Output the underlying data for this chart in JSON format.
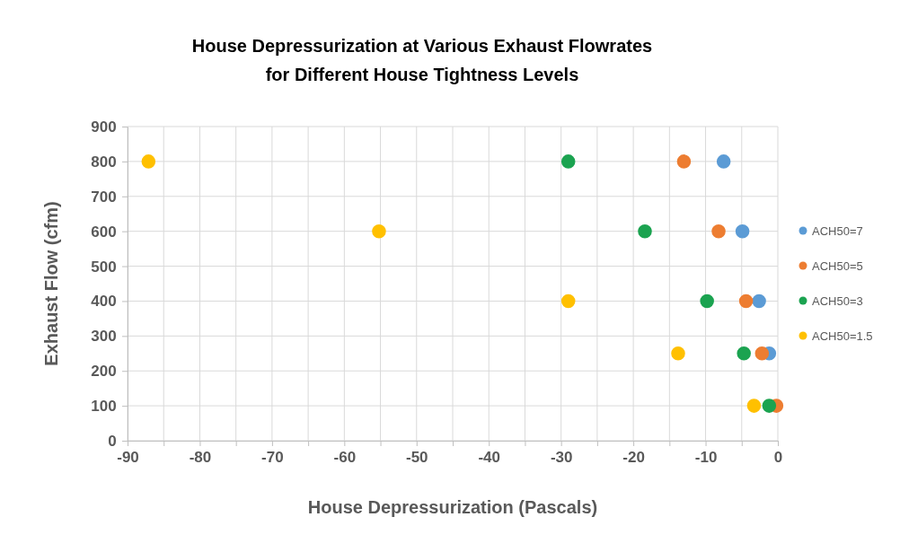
{
  "chart_data": {
    "type": "scatter",
    "title": "House Depressurization at Various Exhaust Flowrates\nfor Different House Tightness Levels",
    "xlabel": "House Depressurization (Pascals)",
    "ylabel": "Exhaust  Flow (cfm)",
    "xlim": [
      -90,
      0
    ],
    "ylim": [
      0,
      900
    ],
    "xticks": [
      -90,
      {
        "value": -85,
        "label": null
      },
      -80,
      {
        "value": -75,
        "label": null
      },
      -70,
      {
        "value": -65,
        "label": null
      },
      -60,
      {
        "value": -55,
        "label": null
      },
      -50,
      {
        "value": -45,
        "label": null
      },
      -40,
      {
        "value": -35,
        "label": null
      },
      -30,
      {
        "value": -25,
        "label": null
      },
      -20,
      {
        "value": -15,
        "label": null
      },
      -10,
      {
        "value": -5,
        "label": null
      },
      0
    ],
    "yticks": [
      0,
      100,
      200,
      300,
      400,
      500,
      600,
      700,
      800,
      900
    ],
    "grid": true,
    "legend": "right",
    "marker": "circle",
    "series": [
      {
        "name": "ACH50=7",
        "color": "#5b9bd5",
        "x": [
          -7.5,
          -4.9,
          -2.6,
          -1.2,
          null
        ],
        "values": [
          800,
          600,
          400,
          250,
          null
        ]
      },
      {
        "name": "ACH50=5",
        "color": "#ed7d31",
        "x": [
          -13.0,
          -8.2,
          -4.4,
          -2.2,
          -0.2
        ],
        "values": [
          800,
          600,
          400,
          250,
          100
        ]
      },
      {
        "name": "ACH50=3",
        "color": "#1ba350",
        "x": [
          -29,
          -18.4,
          -9.8,
          -4.7,
          -1.2
        ],
        "values": [
          800,
          600,
          400,
          250,
          100
        ]
      },
      {
        "name": "ACH50=1.5",
        "color": "#ffc000",
        "x": [
          -87.1,
          -55.2,
          -29,
          -13.8,
          -3.3
        ],
        "values": [
          800,
          600,
          400,
          250,
          100
        ]
      }
    ]
  }
}
